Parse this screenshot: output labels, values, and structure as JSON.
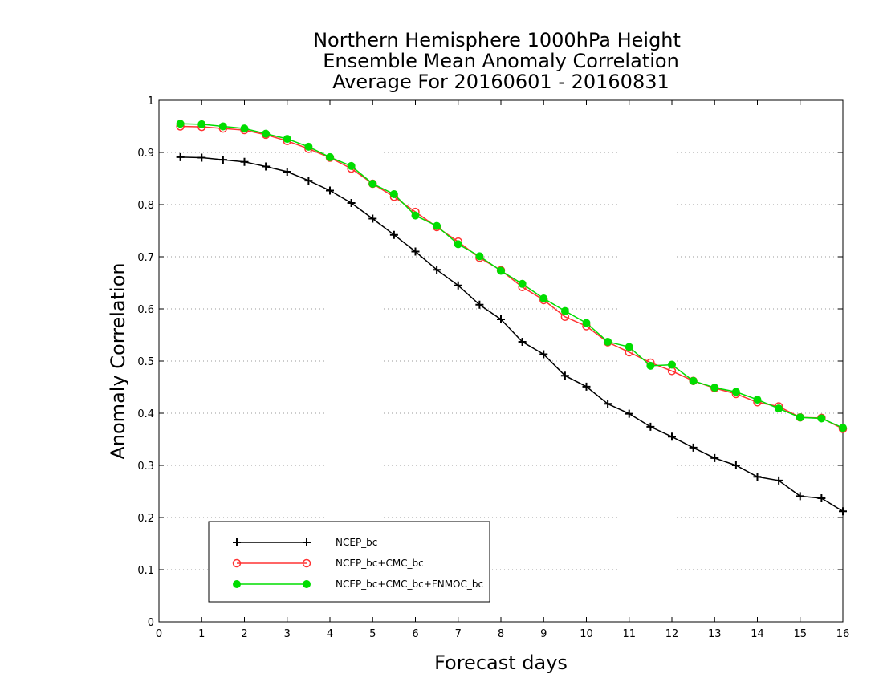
{
  "chart_data": {
    "type": "line",
    "title_lines": [
      "Northern Hemisphere 1000hPa Height",
      "Ensemble Mean Anomaly Correlation",
      "Average For 20160601 - 20160831"
    ],
    "xlabel": "Forecast days",
    "ylabel": "Anomaly Correlation",
    "xlim": [
      0,
      16
    ],
    "ylim": [
      0,
      1
    ],
    "xticks": [
      "0",
      "1",
      "2",
      "3",
      "4",
      "5",
      "6",
      "7",
      "8",
      "9",
      "10",
      "11",
      "12",
      "13",
      "14",
      "15",
      "16"
    ],
    "yticks": [
      "0",
      "0.1",
      "0.2",
      "0.3",
      "0.4",
      "0.5",
      "0.6",
      "0.7",
      "0.8",
      "0.9",
      "1"
    ],
    "grid": "horizontal-dotted",
    "legend_position": "bottom-left",
    "x": [
      0.5,
      1,
      1.5,
      2,
      2.5,
      3,
      3.5,
      4,
      4.5,
      5,
      5.5,
      6,
      6.5,
      7,
      7.5,
      8,
      8.5,
      9,
      9.5,
      10,
      10.5,
      11,
      11.5,
      12,
      12.5,
      13,
      13.5,
      14,
      14.5,
      15,
      15.5,
      16
    ],
    "series": [
      {
        "name": "NCEP_bc",
        "color": "#000000",
        "marker": "plus",
        "values": [
          0.891,
          0.89,
          0.886,
          0.882,
          0.873,
          0.863,
          0.846,
          0.827,
          0.803,
          0.773,
          0.742,
          0.71,
          0.675,
          0.645,
          0.608,
          0.58,
          0.537,
          0.513,
          0.472,
          0.451,
          0.418,
          0.399,
          0.374,
          0.355,
          0.334,
          0.314,
          0.3,
          0.278,
          0.271,
          0.241,
          0.237,
          0.212
        ]
      },
      {
        "name": "NCEP_bc+CMC_bc",
        "color": "#ff3333",
        "marker": "open-circle",
        "values": [
          0.95,
          0.949,
          0.946,
          0.943,
          0.934,
          0.922,
          0.907,
          0.89,
          0.869,
          0.84,
          0.815,
          0.786,
          0.757,
          0.729,
          0.698,
          0.674,
          0.642,
          0.617,
          0.585,
          0.567,
          0.536,
          0.517,
          0.497,
          0.481,
          0.462,
          0.448,
          0.437,
          0.421,
          0.413,
          0.392,
          0.391,
          0.37
        ]
      },
      {
        "name": "NCEP_bc+CMC_bc+FNMOC_bc",
        "color": "#00dd00",
        "marker": "filled-circle",
        "values": [
          0.955,
          0.954,
          0.95,
          0.946,
          0.936,
          0.926,
          0.911,
          0.891,
          0.874,
          0.84,
          0.82,
          0.779,
          0.759,
          0.724,
          0.701,
          0.673,
          0.648,
          0.62,
          0.596,
          0.573,
          0.537,
          0.527,
          0.491,
          0.493,
          0.462,
          0.449,
          0.441,
          0.426,
          0.409,
          0.392,
          0.39,
          0.372
        ]
      }
    ]
  }
}
